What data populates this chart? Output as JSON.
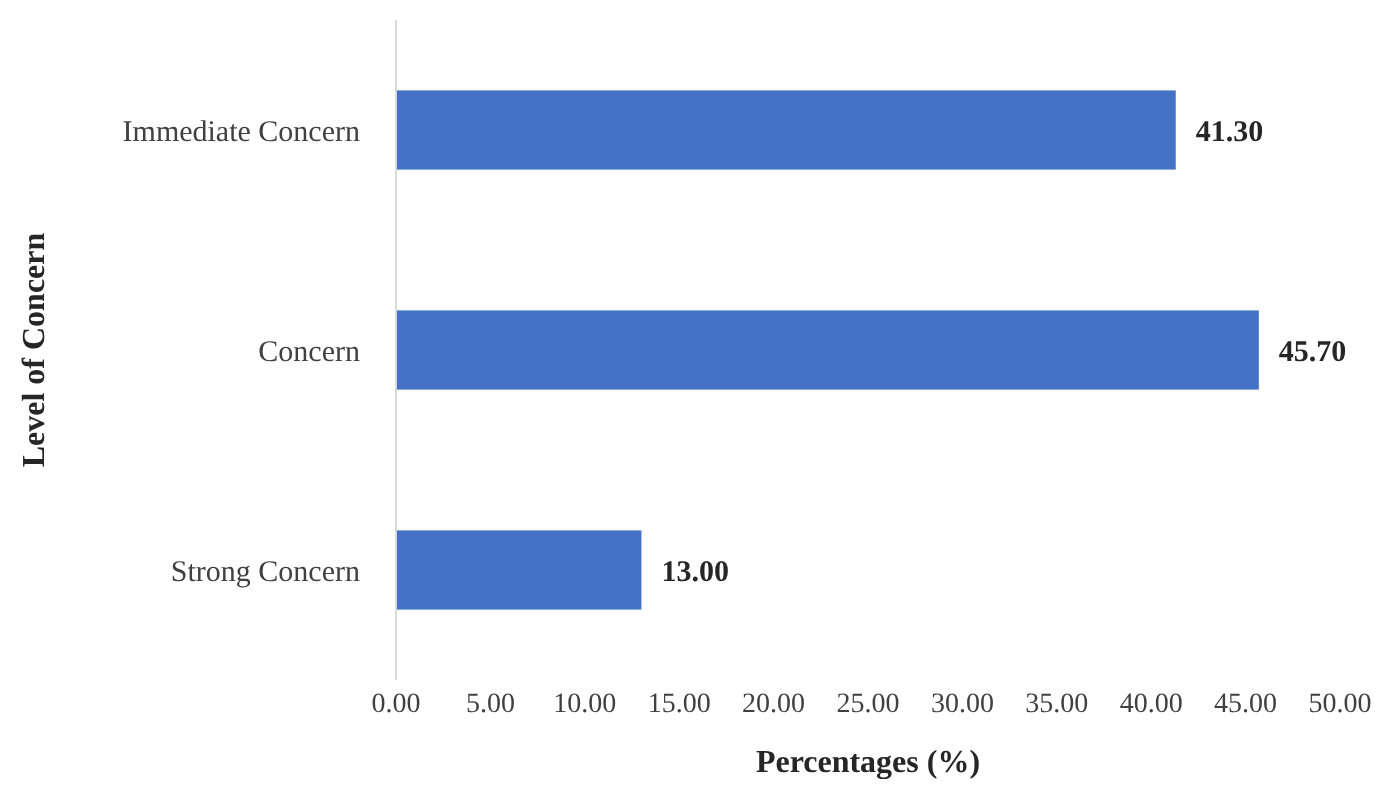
{
  "chart_data": {
    "type": "bar",
    "orientation": "horizontal",
    "xlabel": "Percentages (%)",
    "ylabel": "Level of Concern",
    "categories": [
      "Immediate Concern",
      "Concern",
      "Strong Concern"
    ],
    "values": [
      41.3,
      45.7,
      13.0
    ],
    "color": "#4472c4",
    "value_labels": [
      "41.30",
      "45.70",
      "13.00"
    ],
    "xlim": [
      0,
      50
    ],
    "xticks": [
      {
        "value": 0,
        "label": "0.00"
      },
      {
        "value": 5,
        "label": "5.00"
      },
      {
        "value": 10,
        "label": "10.00"
      },
      {
        "value": 15,
        "label": "15.00"
      },
      {
        "value": 20,
        "label": "20.00"
      },
      {
        "value": 25,
        "label": "25.00"
      },
      {
        "value": 30,
        "label": "30.00"
      },
      {
        "value": 35,
        "label": "35.00"
      },
      {
        "value": 40,
        "label": "40.00"
      },
      {
        "value": 45,
        "label": "45.00"
      },
      {
        "value": 50,
        "label": "50.00"
      }
    ],
    "grid": false
  }
}
